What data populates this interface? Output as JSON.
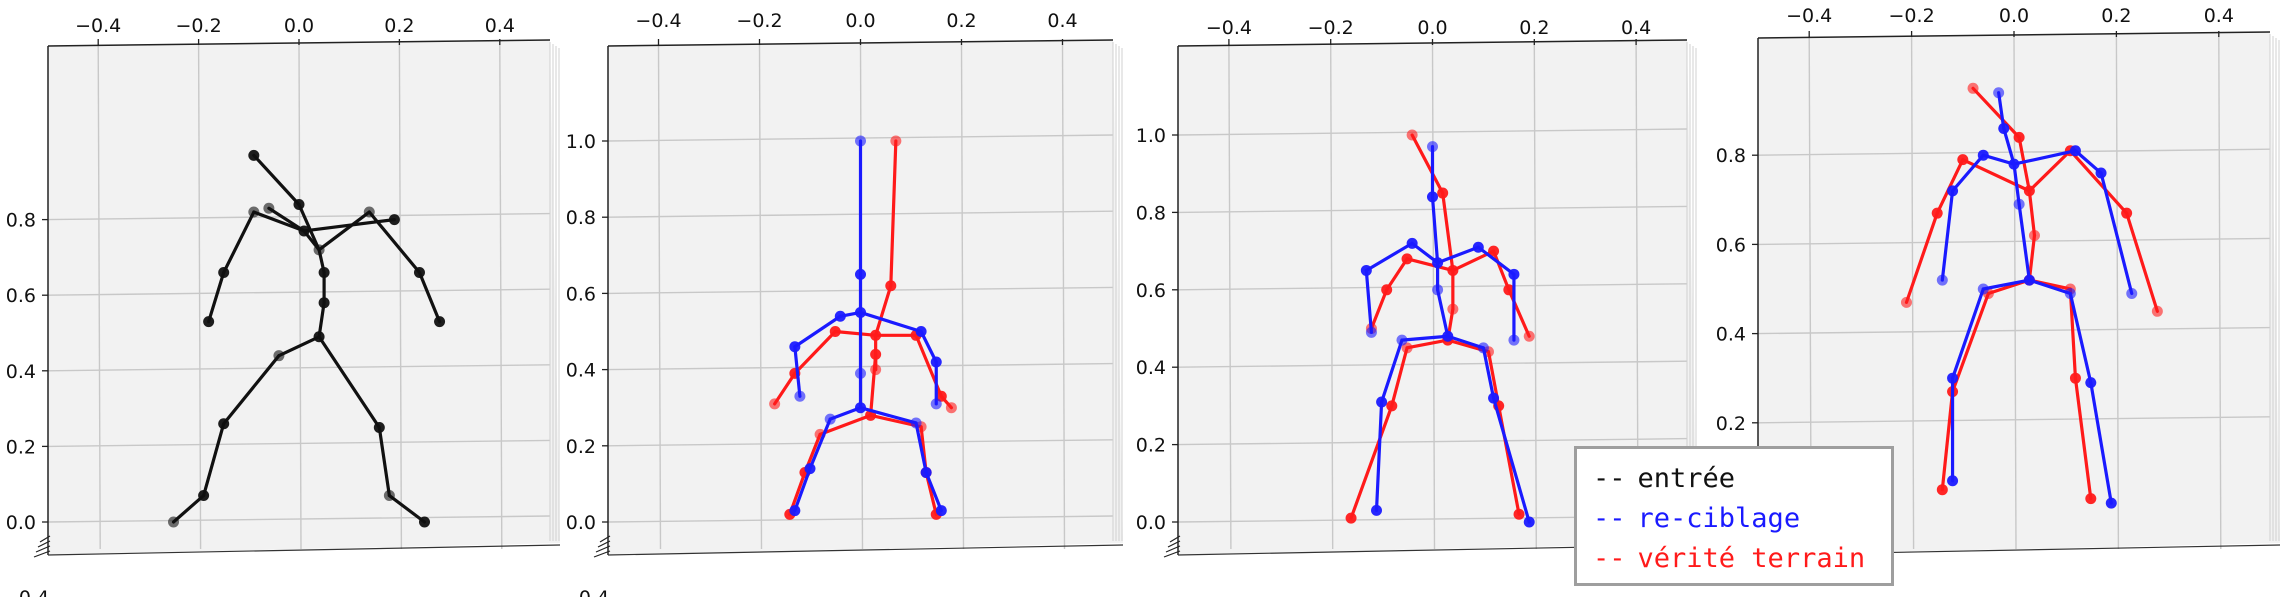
{
  "figure": {
    "legend": [
      {
        "label": "entrée",
        "dash": "--",
        "color": "#111111"
      },
      {
        "label": "re-ciblage",
        "dash": "--",
        "color": "#1a1aff"
      },
      {
        "label": "vérité terrain",
        "dash": "--",
        "color": "#ff1a1a"
      }
    ]
  },
  "colors": {
    "input": "#111111",
    "retarget": "#1a1aff",
    "ground_truth": "#ff1a1a",
    "pane": "#f2f2f2",
    "grid": "#c8c8c8"
  },
  "chart_data": [
    {
      "type": "scatter",
      "title": "",
      "xlim": [
        -0.5,
        0.5
      ],
      "xticks": [
        "−0.4",
        "−0.2",
        "0.0",
        "0.2",
        "0.4"
      ],
      "yticks": [
        "0.0",
        "0.2",
        "0.4",
        "0.6",
        "0.8"
      ],
      "bottom_tick_fragment": "0.4",
      "series": [
        {
          "color": "#111111",
          "joints": [
            [
              0.25,
              0.0
            ],
            [
              0.18,
              0.07
            ],
            [
              0.16,
              0.25
            ],
            [
              0.04,
              0.49
            ],
            [
              -0.04,
              0.44
            ],
            [
              -0.15,
              0.26
            ],
            [
              -0.19,
              0.07
            ],
            [
              -0.25,
              0.0
            ],
            [
              0.05,
              0.58
            ],
            [
              0.05,
              0.66
            ],
            [
              0.04,
              0.72
            ],
            [
              0.0,
              0.84
            ],
            [
              0.01,
              0.77
            ],
            [
              -0.09,
              0.82
            ],
            [
              -0.15,
              0.66
            ],
            [
              -0.18,
              0.53
            ],
            [
              0.14,
              0.82
            ],
            [
              0.24,
              0.66
            ],
            [
              0.28,
              0.53
            ],
            [
              -0.06,
              0.83
            ],
            [
              0.19,
              0.8
            ],
            [
              -0.09,
              0.97
            ]
          ],
          "bones": [
            [
              0,
              1
            ],
            [
              1,
              2
            ],
            [
              2,
              3
            ],
            [
              3,
              4
            ],
            [
              4,
              5
            ],
            [
              5,
              6
            ],
            [
              6,
              7
            ],
            [
              3,
              8
            ],
            [
              8,
              9
            ],
            [
              9,
              10
            ],
            [
              10,
              11
            ],
            [
              10,
              12
            ],
            [
              12,
              13
            ],
            [
              13,
              14
            ],
            [
              14,
              15
            ],
            [
              10,
              16
            ],
            [
              16,
              17
            ],
            [
              17,
              18
            ],
            [
              11,
              21
            ],
            [
              12,
              19
            ],
            [
              12,
              20
            ]
          ]
        }
      ]
    },
    {
      "type": "scatter",
      "title": "",
      "xlim": [
        -0.5,
        0.5
      ],
      "xticks": [
        "−0.4",
        "−0.2",
        "0.0",
        "0.2",
        "0.4"
      ],
      "yticks": [
        "0.0",
        "0.2",
        "0.4",
        "0.6",
        "0.8",
        "1.0"
      ],
      "bottom_tick_fragment": "0.4",
      "series": [
        {
          "color": "#ff1a1a",
          "joints": [
            [
              0.02,
              0.28
            ],
            [
              0.12,
              0.25
            ],
            [
              0.13,
              0.13
            ],
            [
              0.15,
              0.02
            ],
            [
              -0.08,
              0.23
            ],
            [
              -0.11,
              0.13
            ],
            [
              -0.14,
              0.02
            ],
            [
              0.03,
              0.4
            ],
            [
              0.03,
              0.49
            ],
            [
              0.06,
              0.62
            ],
            [
              0.07,
              1.0
            ],
            [
              0.11,
              0.49
            ],
            [
              0.16,
              0.33
            ],
            [
              0.18,
              0.3
            ],
            [
              -0.05,
              0.5
            ],
            [
              -0.13,
              0.39
            ],
            [
              -0.17,
              0.31
            ],
            [
              0.03,
              0.44
            ]
          ],
          "bones": [
            [
              0,
              1
            ],
            [
              1,
              2
            ],
            [
              2,
              3
            ],
            [
              0,
              4
            ],
            [
              4,
              5
            ],
            [
              5,
              6
            ],
            [
              0,
              17
            ],
            [
              17,
              7
            ],
            [
              7,
              8
            ],
            [
              8,
              9
            ],
            [
              9,
              10
            ],
            [
              8,
              11
            ],
            [
              11,
              12
            ],
            [
              12,
              13
            ],
            [
              8,
              14
            ],
            [
              14,
              15
            ],
            [
              15,
              16
            ]
          ]
        },
        {
          "color": "#1a1aff",
          "joints": [
            [
              0.0,
              0.3
            ],
            [
              0.11,
              0.26
            ],
            [
              0.13,
              0.13
            ],
            [
              0.16,
              0.03
            ],
            [
              -0.06,
              0.27
            ],
            [
              -0.1,
              0.14
            ],
            [
              -0.13,
              0.03
            ],
            [
              0.0,
              0.39
            ],
            [
              0.0,
              0.55
            ],
            [
              0.0,
              0.65
            ],
            [
              0.0,
              1.0
            ],
            [
              0.12,
              0.5
            ],
            [
              0.15,
              0.42
            ],
            [
              0.15,
              0.31
            ],
            [
              -0.04,
              0.54
            ],
            [
              -0.13,
              0.46
            ],
            [
              -0.12,
              0.33
            ]
          ],
          "bones": [
            [
              0,
              1
            ],
            [
              1,
              2
            ],
            [
              2,
              3
            ],
            [
              0,
              4
            ],
            [
              4,
              5
            ],
            [
              5,
              6
            ],
            [
              0,
              7
            ],
            [
              7,
              8
            ],
            [
              8,
              9
            ],
            [
              9,
              10
            ],
            [
              8,
              11
            ],
            [
              11,
              12
            ],
            [
              12,
              13
            ],
            [
              8,
              14
            ],
            [
              14,
              15
            ],
            [
              15,
              16
            ]
          ]
        }
      ]
    },
    {
      "type": "scatter",
      "title": "",
      "xlim": [
        -0.5,
        0.5
      ],
      "xticks": [
        "−0.4",
        "−0.2",
        "0.0",
        "0.2",
        "0.4"
      ],
      "yticks": [
        "0.0",
        "0.2",
        "0.4",
        "0.6",
        "0.8",
        "1.0"
      ],
      "bottom_tick_fragment": "",
      "series": [
        {
          "color": "#ff1a1a",
          "joints": [
            [
              0.03,
              0.47
            ],
            [
              0.11,
              0.44
            ],
            [
              0.13,
              0.3
            ],
            [
              0.17,
              0.02
            ],
            [
              -0.05,
              0.45
            ],
            [
              -0.08,
              0.3
            ],
            [
              -0.16,
              0.01
            ],
            [
              0.04,
              0.55
            ],
            [
              0.04,
              0.65
            ],
            [
              0.02,
              0.85
            ],
            [
              -0.04,
              1.0
            ],
            [
              0.12,
              0.7
            ],
            [
              0.15,
              0.6
            ],
            [
              0.19,
              0.48
            ],
            [
              -0.05,
              0.68
            ],
            [
              -0.09,
              0.6
            ],
            [
              -0.12,
              0.5
            ]
          ],
          "bones": [
            [
              0,
              1
            ],
            [
              1,
              2
            ],
            [
              2,
              3
            ],
            [
              0,
              4
            ],
            [
              4,
              5
            ],
            [
              5,
              6
            ],
            [
              0,
              7
            ],
            [
              7,
              8
            ],
            [
              8,
              9
            ],
            [
              9,
              10
            ],
            [
              8,
              11
            ],
            [
              11,
              12
            ],
            [
              12,
              13
            ],
            [
              8,
              14
            ],
            [
              14,
              15
            ],
            [
              15,
              16
            ]
          ]
        },
        {
          "color": "#1a1aff",
          "joints": [
            [
              0.03,
              0.48
            ],
            [
              0.1,
              0.45
            ],
            [
              0.12,
              0.32
            ],
            [
              0.19,
              0.0
            ],
            [
              -0.06,
              0.47
            ],
            [
              -0.1,
              0.31
            ],
            [
              -0.11,
              0.03
            ],
            [
              0.01,
              0.6
            ],
            [
              0.01,
              0.67
            ],
            [
              0.0,
              0.84
            ],
            [
              0.0,
              0.97
            ],
            [
              0.09,
              0.71
            ],
            [
              0.16,
              0.64
            ],
            [
              0.16,
              0.47
            ],
            [
              -0.04,
              0.72
            ],
            [
              -0.13,
              0.65
            ],
            [
              -0.12,
              0.49
            ]
          ],
          "bones": [
            [
              0,
              1
            ],
            [
              1,
              2
            ],
            [
              2,
              3
            ],
            [
              0,
              4
            ],
            [
              4,
              5
            ],
            [
              5,
              6
            ],
            [
              0,
              7
            ],
            [
              7,
              8
            ],
            [
              8,
              9
            ],
            [
              9,
              10
            ],
            [
              8,
              11
            ],
            [
              11,
              12
            ],
            [
              12,
              13
            ],
            [
              8,
              14
            ],
            [
              14,
              15
            ],
            [
              15,
              16
            ]
          ]
        }
      ]
    },
    {
      "type": "scatter",
      "title": "",
      "xlim": [
        -0.5,
        0.5
      ],
      "xticks": [
        "−0.4",
        "−0.2",
        "0.0",
        "0.2",
        "0.4"
      ],
      "yticks": [
        "0.2",
        "0.4",
        "0.6",
        "0.8"
      ],
      "bottom_tick_fragment": "",
      "series": [
        {
          "color": "#ff1a1a",
          "joints": [
            [
              0.03,
              0.52
            ],
            [
              0.11,
              0.5
            ],
            [
              0.12,
              0.3
            ],
            [
              0.15,
              0.03
            ],
            [
              -0.05,
              0.49
            ],
            [
              -0.12,
              0.27
            ],
            [
              -0.14,
              0.05
            ],
            [
              0.04,
              0.62
            ],
            [
              0.03,
              0.72
            ],
            [
              0.01,
              0.84
            ],
            [
              -0.08,
              0.95
            ],
            [
              0.11,
              0.81
            ],
            [
              0.22,
              0.67
            ],
            [
              0.28,
              0.45
            ],
            [
              -0.1,
              0.79
            ],
            [
              -0.15,
              0.67
            ],
            [
              -0.21,
              0.47
            ]
          ],
          "bones": [
            [
              0,
              1
            ],
            [
              1,
              2
            ],
            [
              2,
              3
            ],
            [
              0,
              4
            ],
            [
              4,
              5
            ],
            [
              5,
              6
            ],
            [
              0,
              7
            ],
            [
              7,
              8
            ],
            [
              8,
              9
            ],
            [
              9,
              10
            ],
            [
              8,
              11
            ],
            [
              11,
              12
            ],
            [
              12,
              13
            ],
            [
              8,
              14
            ],
            [
              14,
              15
            ],
            [
              15,
              16
            ]
          ]
        },
        {
          "color": "#1a1aff",
          "joints": [
            [
              0.03,
              0.52
            ],
            [
              0.11,
              0.49
            ],
            [
              0.15,
              0.29
            ],
            [
              0.19,
              0.02
            ],
            [
              -0.06,
              0.5
            ],
            [
              -0.12,
              0.3
            ],
            [
              -0.12,
              0.07
            ],
            [
              0.01,
              0.69
            ],
            [
              0.0,
              0.78
            ],
            [
              -0.02,
              0.86
            ],
            [
              -0.03,
              0.94
            ],
            [
              0.12,
              0.81
            ],
            [
              0.17,
              0.76
            ],
            [
              0.23,
              0.49
            ],
            [
              -0.06,
              0.8
            ],
            [
              -0.12,
              0.72
            ],
            [
              -0.14,
              0.52
            ]
          ],
          "bones": [
            [
              0,
              1
            ],
            [
              1,
              2
            ],
            [
              2,
              3
            ],
            [
              0,
              4
            ],
            [
              4,
              5
            ],
            [
              5,
              6
            ],
            [
              0,
              7
            ],
            [
              7,
              8
            ],
            [
              8,
              9
            ],
            [
              9,
              10
            ],
            [
              8,
              11
            ],
            [
              11,
              12
            ],
            [
              12,
              13
            ],
            [
              8,
              14
            ],
            [
              14,
              15
            ],
            [
              15,
              16
            ]
          ]
        }
      ]
    }
  ]
}
